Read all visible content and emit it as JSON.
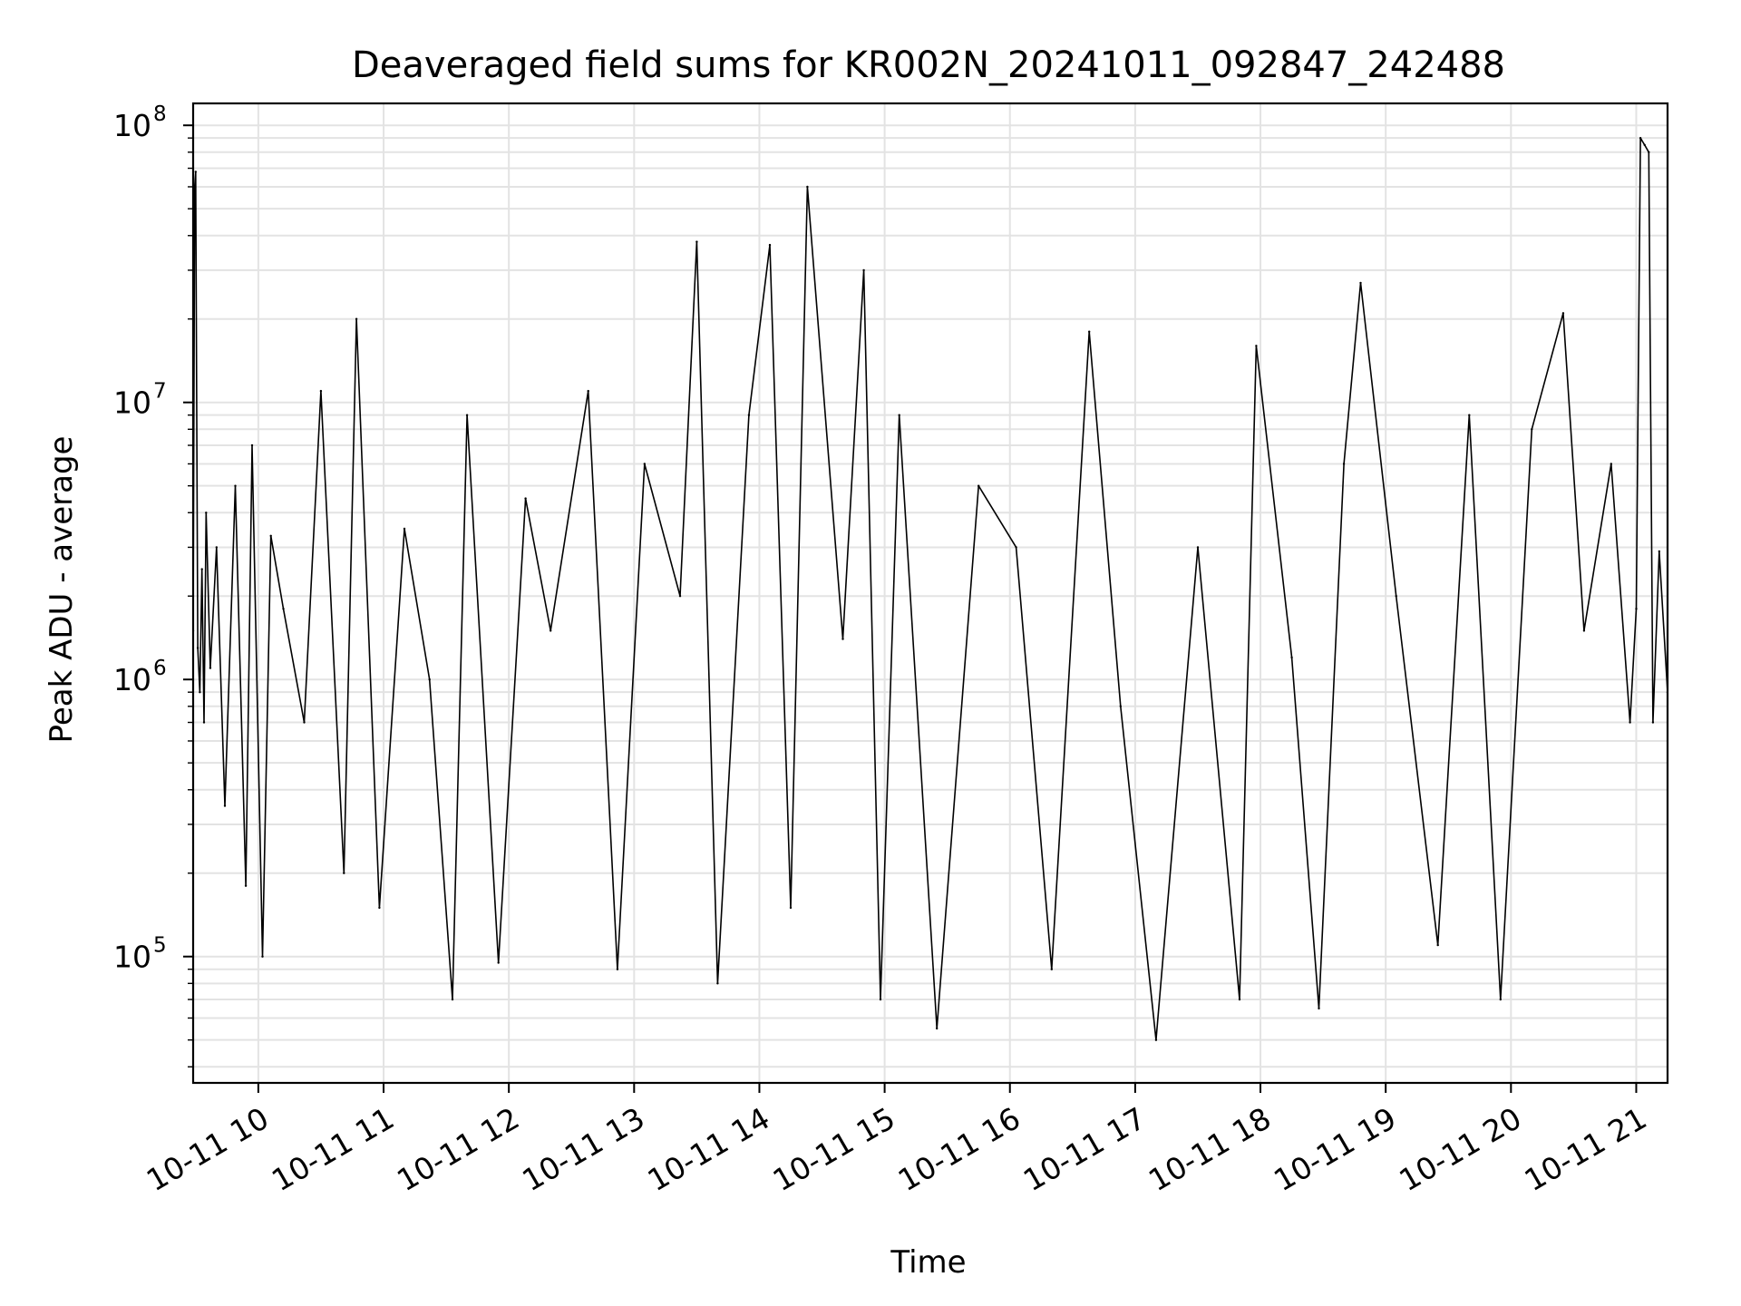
{
  "chart_data": {
    "type": "line",
    "title": "Deaveraged field sums for KR002N_20241011_092847_242488",
    "xlabel": "Time",
    "ylabel": "Peak ADU - average",
    "yscale": "log",
    "xlim": [
      "2024-10-11 09:28:47",
      "2024-10-11 21:15:00"
    ],
    "ylim": [
      35000,
      120000000
    ],
    "grid": true,
    "legend": "none",
    "line_color": "#000000",
    "x_ticks": [
      "10-11 10",
      "10-11 11",
      "10-11 12",
      "10-11 13",
      "10-11 14",
      "10-11 15",
      "10-11 16",
      "10-11 17",
      "10-11 18",
      "10-11 19",
      "10-11 20",
      "10-11 21"
    ],
    "y_ticks": [
      {
        "value": 100000,
        "base": "10",
        "exp": "5"
      },
      {
        "value": 1000000,
        "base": "10",
        "exp": "6"
      },
      {
        "value": 10000000,
        "base": "10",
        "exp": "7"
      },
      {
        "value": 100000000,
        "base": "10",
        "exp": "8"
      }
    ],
    "series": [
      {
        "x": [
          "2024-10-11 09:28:47",
          "2024-10-11 09:29:30",
          "2024-10-11 09:30:00",
          "2024-10-11 09:31:00",
          "2024-10-11 09:32:00",
          "2024-10-11 09:33:00",
          "2024-10-11 09:34:00",
          "2024-10-11 09:35:00",
          "2024-10-11 09:37:00",
          "2024-10-11 09:40:00",
          "2024-10-11 09:44:00",
          "2024-10-11 09:49:00",
          "2024-10-11 09:54:00",
          "2024-10-11 09:57:00",
          "2024-10-11 10:02:00",
          "2024-10-11 10:06:00",
          "2024-10-11 10:12:00",
          "2024-10-11 10:22:00",
          "2024-10-11 10:30:00",
          "2024-10-11 10:41:00",
          "2024-10-11 10:47:00",
          "2024-10-11 10:58:00",
          "2024-10-11 11:10:00",
          "2024-10-11 11:22:00",
          "2024-10-11 11:33:00",
          "2024-10-11 11:40:00",
          "2024-10-11 11:55:00",
          "2024-10-11 12:08:00",
          "2024-10-11 12:20:00",
          "2024-10-11 12:38:00",
          "2024-10-11 12:52:00",
          "2024-10-11 13:05:00",
          "2024-10-11 13:22:00",
          "2024-10-11 13:30:00",
          "2024-10-11 13:40:00",
          "2024-10-11 13:55:00",
          "2024-10-11 14:05:00",
          "2024-10-11 14:15:00",
          "2024-10-11 14:23:00",
          "2024-10-11 14:40:00",
          "2024-10-11 14:50:00",
          "2024-10-11 14:58:00",
          "2024-10-11 15:07:00",
          "2024-10-11 15:25:00",
          "2024-10-11 15:45:00",
          "2024-10-11 16:03:00",
          "2024-10-11 16:20:00",
          "2024-10-11 16:38:00",
          "2024-10-11 16:53:00",
          "2024-10-11 17:10:00",
          "2024-10-11 17:30:00",
          "2024-10-11 17:50:00",
          "2024-10-11 17:58:00",
          "2024-10-11 18:15:00",
          "2024-10-11 18:28:00",
          "2024-10-11 18:40:00",
          "2024-10-11 18:48:00",
          "2024-10-11 19:05:00",
          "2024-10-11 19:25:00",
          "2024-10-11 19:40:00",
          "2024-10-11 19:55:00",
          "2024-10-11 20:10:00",
          "2024-10-11 20:25:00",
          "2024-10-11 20:35:00",
          "2024-10-11 20:48:00",
          "2024-10-11 20:57:00",
          "2024-10-11 21:00:00",
          "2024-10-11 21:02:00",
          "2024-10-11 21:04:00",
          "2024-10-11 21:06:00",
          "2024-10-11 21:08:00",
          "2024-10-11 21:11:00",
          "2024-10-11 21:15:00"
        ],
        "y": [
          1500000,
          60000000,
          68000000,
          1300000,
          900000,
          2500000,
          700000,
          4000000,
          1100000,
          3000000,
          350000,
          5000000,
          180000,
          7000000,
          100000,
          3300000,
          1800000,
          700000,
          11000000,
          200000,
          20000000,
          150000,
          3500000,
          1000000,
          70000,
          9000000,
          95000,
          4500000,
          1500000,
          11000000,
          90000,
          6000000,
          2000000,
          38000000,
          80000,
          9000000,
          37000000,
          150000,
          60000000,
          1400000,
          30000000,
          70000,
          9000000,
          55000,
          5000000,
          3000000,
          90000,
          18000000,
          800000,
          50000,
          3000000,
          70000,
          16000000,
          1200000,
          65000,
          6000000,
          27000000,
          2000000,
          110000,
          9000000,
          70000,
          8000000,
          21000000,
          1500000,
          6000000,
          700000,
          1800000,
          90000000,
          85000000,
          80000000,
          700000,
          2900000,
          900000
        ]
      }
    ]
  }
}
